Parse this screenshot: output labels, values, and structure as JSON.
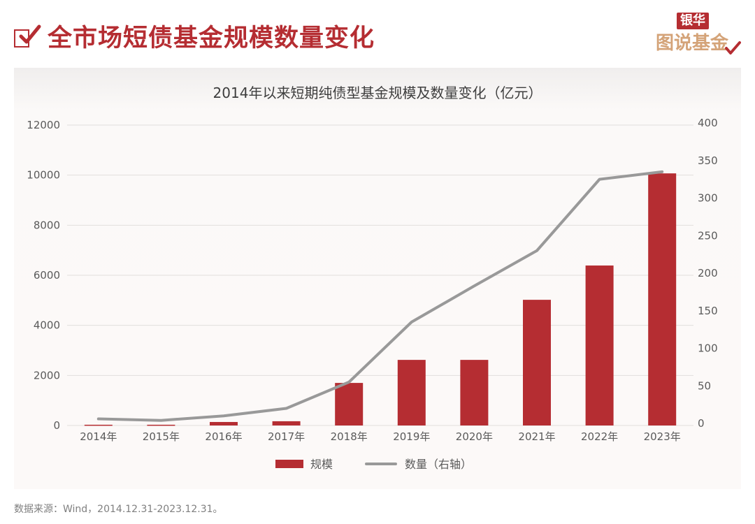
{
  "header": {
    "title": "全市场短债基金规模数量变化",
    "logo_top": "银华",
    "logo_bottom": "图说基金"
  },
  "colors": {
    "accent": "#b52d32",
    "bar": "#b52d32",
    "line": "#999999",
    "logo_gold": "#d4a378"
  },
  "chart_data": {
    "type": "bar",
    "title": "2014年以来短期纯债型基金规模及数量变化（亿元）",
    "categories": [
      "2014年",
      "2015年",
      "2016年",
      "2017年",
      "2018年",
      "2019年",
      "2020年",
      "2021年",
      "2022年",
      "2023年"
    ],
    "series": [
      {
        "name": "规模",
        "type": "bar",
        "axis": "left",
        "values": [
          30,
          30,
          140,
          170,
          1700,
          2620,
          2620,
          5020,
          6390,
          10070
        ]
      },
      {
        "name": "数量（右轴）",
        "type": "line",
        "axis": "right",
        "values": [
          6,
          4,
          10,
          20,
          55,
          135,
          183,
          230,
          325,
          335
        ]
      }
    ],
    "y_left": {
      "min": 0,
      "max": 12000,
      "ticks": [
        0,
        2000,
        4000,
        6000,
        8000,
        10000,
        12000
      ]
    },
    "y_right": {
      "min": 0,
      "max": 400,
      "ticks": [
        0,
        50,
        100,
        150,
        200,
        250,
        300,
        350,
        400
      ]
    },
    "grid": true,
    "legend": "bottom-center"
  },
  "footer": {
    "source": "数据来源：Wind，2014.12.31-2023.12.31。"
  }
}
